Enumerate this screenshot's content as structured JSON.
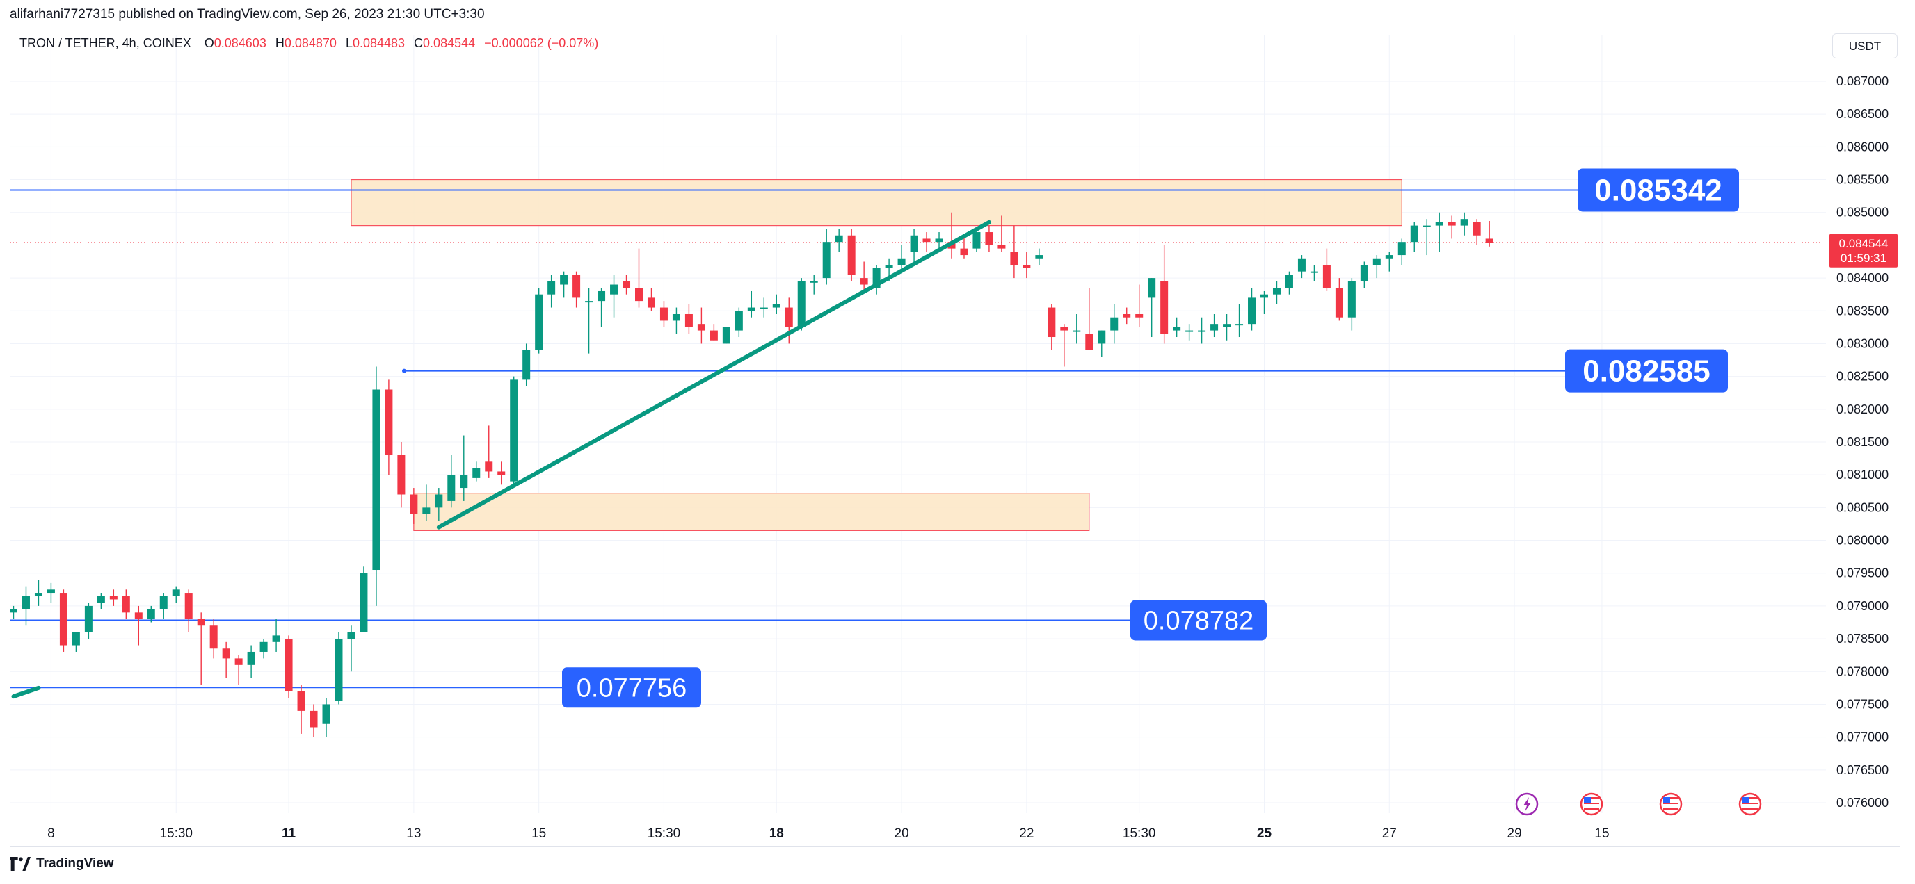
{
  "publisher_line": "alifarhani7727315 published on TradingView.com, Sep 26, 2023 21:30 UTC+3:30",
  "footer_brand": "TradingView",
  "currency_button": "USDT",
  "legend": {
    "symbol": "TRON / TETHER, 4h, COINEX",
    "o_label": "O",
    "o_value": "0.084603",
    "h_label": "H",
    "h_value": "0.084870",
    "l_label": "L",
    "l_value": "0.084483",
    "c_label": "C",
    "c_value": "0.084544",
    "change": "−0.000062 (−0.07%)"
  },
  "colors": {
    "up": "#089981",
    "down": "#f23645",
    "level_line": "#2962ff",
    "zone_fill": "#fde8c8",
    "zone_border": "#f7525f",
    "trendline": "#089981",
    "price_tag": "#f23645",
    "grid": "#f0f3fa",
    "axis_text": "#131722"
  },
  "chart_data": {
    "type": "candlestick",
    "ylim": [
      0.0757,
      0.0874
    ],
    "x_axis_labels": [
      {
        "text": "8",
        "i": 3,
        "bold": false
      },
      {
        "text": "15:30",
        "i": 13,
        "bold": false
      },
      {
        "text": "11",
        "i": 22,
        "bold": true
      },
      {
        "text": "13",
        "i": 32,
        "bold": false
      },
      {
        "text": "15",
        "i": 42,
        "bold": false
      },
      {
        "text": "15:30",
        "i": 52,
        "bold": false
      },
      {
        "text": "18",
        "i": 61,
        "bold": true
      },
      {
        "text": "20",
        "i": 71,
        "bold": false
      },
      {
        "text": "22",
        "i": 81,
        "bold": false
      },
      {
        "text": "15:30",
        "i": 90,
        "bold": false
      },
      {
        "text": "25",
        "i": 100,
        "bold": true
      },
      {
        "text": "27",
        "i": 110,
        "bold": false
      },
      {
        "text": "29",
        "i": 120,
        "bold": false
      },
      {
        "text": "15",
        "i": 127,
        "bold": false
      }
    ],
    "y_ticks": [
      "0.087000",
      "0.086500",
      "0.086000",
      "0.085500",
      "0.085000",
      "0.084000",
      "0.083500",
      "0.083000",
      "0.082500",
      "0.082000",
      "0.081500",
      "0.081000",
      "0.080500",
      "0.080000",
      "0.079500",
      "0.079000",
      "0.078500",
      "0.078000",
      "0.077500",
      "0.077000",
      "0.076500",
      "0.076000"
    ],
    "candles": [
      [
        0.0789,
        0.079,
        0.0788,
        0.07895
      ],
      [
        0.07895,
        0.0793,
        0.0787,
        0.07915
      ],
      [
        0.07915,
        0.0794,
        0.079,
        0.0792
      ],
      [
        0.0792,
        0.07935,
        0.07905,
        0.07925
      ],
      [
        0.0792,
        0.07925,
        0.0783,
        0.0784
      ],
      [
        0.0784,
        0.0786,
        0.0783,
        0.0786
      ],
      [
        0.0786,
        0.07905,
        0.0785,
        0.079
      ],
      [
        0.07905,
        0.0792,
        0.07895,
        0.07915
      ],
      [
        0.07915,
        0.07925,
        0.079,
        0.0791
      ],
      [
        0.07915,
        0.07925,
        0.0788,
        0.0789
      ],
      [
        0.0789,
        0.079,
        0.0784,
        0.0788
      ],
      [
        0.0788,
        0.079,
        0.07875,
        0.07895
      ],
      [
        0.07895,
        0.0792,
        0.0788,
        0.07915
      ],
      [
        0.07915,
        0.0793,
        0.07905,
        0.07925
      ],
      [
        0.0792,
        0.07925,
        0.0786,
        0.0788
      ],
      [
        0.0788,
        0.0789,
        0.0778,
        0.0787
      ],
      [
        0.0787,
        0.0788,
        0.0782,
        0.07835
      ],
      [
        0.07835,
        0.07845,
        0.0779,
        0.0782
      ],
      [
        0.0782,
        0.07825,
        0.0778,
        0.0781
      ],
      [
        0.0781,
        0.0784,
        0.0779,
        0.0783
      ],
      [
        0.0783,
        0.0785,
        0.0782,
        0.07845
      ],
      [
        0.07845,
        0.0788,
        0.0783,
        0.07855
      ],
      [
        0.0785,
        0.07855,
        0.0776,
        0.0777
      ],
      [
        0.0777,
        0.0778,
        0.07705,
        0.0774
      ],
      [
        0.0774,
        0.0775,
        0.077,
        0.07715
      ],
      [
        0.0772,
        0.0776,
        0.077,
        0.0775
      ],
      [
        0.07755,
        0.0786,
        0.0775,
        0.0785
      ],
      [
        0.0785,
        0.0787,
        0.078,
        0.0786
      ],
      [
        0.0786,
        0.0796,
        0.0786,
        0.0795
      ],
      [
        0.07955,
        0.08265,
        0.079,
        0.0823
      ],
      [
        0.0823,
        0.08245,
        0.081,
        0.0813
      ],
      [
        0.0813,
        0.0815,
        0.0805,
        0.0807
      ],
      [
        0.0807,
        0.0808,
        0.08025,
        0.0804
      ],
      [
        0.0804,
        0.08085,
        0.0803,
        0.0805
      ],
      [
        0.0805,
        0.0808,
        0.0803,
        0.0807
      ],
      [
        0.0806,
        0.0813,
        0.0805,
        0.081
      ],
      [
        0.0808,
        0.0816,
        0.0806,
        0.081
      ],
      [
        0.08095,
        0.0812,
        0.0809,
        0.0811
      ],
      [
        0.0812,
        0.08175,
        0.08095,
        0.08105
      ],
      [
        0.08105,
        0.0812,
        0.08085,
        0.081
      ],
      [
        0.0809,
        0.0825,
        0.08085,
        0.08245
      ],
      [
        0.08245,
        0.083,
        0.08235,
        0.0829
      ],
      [
        0.0829,
        0.08385,
        0.08285,
        0.08375
      ],
      [
        0.08375,
        0.08405,
        0.08355,
        0.08395
      ],
      [
        0.0839,
        0.0841,
        0.0837,
        0.08405
      ],
      [
        0.08405,
        0.0841,
        0.08355,
        0.0837
      ],
      [
        0.08365,
        0.08385,
        0.08285,
        0.08365
      ],
      [
        0.08365,
        0.08385,
        0.08325,
        0.0838
      ],
      [
        0.08375,
        0.08405,
        0.0834,
        0.0839
      ],
      [
        0.08395,
        0.08405,
        0.08375,
        0.08385
      ],
      [
        0.08385,
        0.08445,
        0.08355,
        0.08365
      ],
      [
        0.0837,
        0.08385,
        0.0835,
        0.08355
      ],
      [
        0.08355,
        0.08365,
        0.08325,
        0.08335
      ],
      [
        0.08335,
        0.08355,
        0.08315,
        0.08345
      ],
      [
        0.08345,
        0.0836,
        0.08315,
        0.08325
      ],
      [
        0.0833,
        0.08355,
        0.083,
        0.0832
      ],
      [
        0.0832,
        0.0833,
        0.08305,
        0.08305
      ],
      [
        0.083,
        0.08325,
        0.083,
        0.08325
      ],
      [
        0.0832,
        0.08355,
        0.0831,
        0.0835
      ],
      [
        0.0835,
        0.0838,
        0.0834,
        0.08355
      ],
      [
        0.08355,
        0.0837,
        0.0834,
        0.08355
      ],
      [
        0.08355,
        0.08375,
        0.08345,
        0.0836
      ],
      [
        0.08355,
        0.0837,
        0.083,
        0.08325
      ],
      [
        0.08325,
        0.084,
        0.0832,
        0.08395
      ],
      [
        0.08395,
        0.08405,
        0.08375,
        0.08395
      ],
      [
        0.084,
        0.08475,
        0.0839,
        0.08455
      ],
      [
        0.08455,
        0.08475,
        0.0844,
        0.08465
      ],
      [
        0.08465,
        0.08475,
        0.08395,
        0.08405
      ],
      [
        0.084,
        0.08425,
        0.0838,
        0.0839
      ],
      [
        0.08385,
        0.0842,
        0.08375,
        0.08415
      ],
      [
        0.08415,
        0.0843,
        0.08395,
        0.0842
      ],
      [
        0.0842,
        0.0845,
        0.0841,
        0.0843
      ],
      [
        0.0844,
        0.08475,
        0.0842,
        0.08465
      ],
      [
        0.0846,
        0.0847,
        0.0844,
        0.08455
      ],
      [
        0.08455,
        0.0847,
        0.0844,
        0.0846
      ],
      [
        0.08455,
        0.085,
        0.0843,
        0.08445
      ],
      [
        0.08445,
        0.08465,
        0.0843,
        0.08435
      ],
      [
        0.08445,
        0.08475,
        0.0844,
        0.0847
      ],
      [
        0.0847,
        0.0848,
        0.0844,
        0.0845
      ],
      [
        0.0845,
        0.08495,
        0.0844,
        0.08445
      ],
      [
        0.0844,
        0.0848,
        0.084,
        0.0842
      ],
      [
        0.0842,
        0.0844,
        0.084,
        0.08415
      ],
      [
        0.0843,
        0.08445,
        0.0842,
        0.08435
      ],
      [
        0.08355,
        0.0836,
        0.0829,
        0.0831
      ],
      [
        0.08325,
        0.0833,
        0.08265,
        0.0832
      ],
      [
        0.0832,
        0.08345,
        0.083,
        0.0832
      ],
      [
        0.08315,
        0.08385,
        0.08295,
        0.0829
      ],
      [
        0.083,
        0.0832,
        0.0828,
        0.0832
      ],
      [
        0.0832,
        0.0836,
        0.083,
        0.0834
      ],
      [
        0.08345,
        0.08355,
        0.0833,
        0.0834
      ],
      [
        0.08345,
        0.0839,
        0.08325,
        0.0834
      ],
      [
        0.0837,
        0.084,
        0.0831,
        0.084
      ],
      [
        0.08395,
        0.0845,
        0.083,
        0.08315
      ],
      [
        0.0832,
        0.0834,
        0.0831,
        0.08325
      ],
      [
        0.0832,
        0.0833,
        0.08305,
        0.0832
      ],
      [
        0.0832,
        0.0834,
        0.083,
        0.0832
      ],
      [
        0.0832,
        0.08345,
        0.0831,
        0.0833
      ],
      [
        0.08325,
        0.08345,
        0.08305,
        0.0833
      ],
      [
        0.0833,
        0.0836,
        0.0831,
        0.0833
      ],
      [
        0.0833,
        0.08385,
        0.0832,
        0.0837
      ],
      [
        0.0837,
        0.0838,
        0.08345,
        0.08375
      ],
      [
        0.08375,
        0.08395,
        0.0836,
        0.08385
      ],
      [
        0.08385,
        0.0841,
        0.08375,
        0.08405
      ],
      [
        0.0841,
        0.08435,
        0.084,
        0.0843
      ],
      [
        0.0841,
        0.0842,
        0.08395,
        0.0841
      ],
      [
        0.0842,
        0.08445,
        0.0838,
        0.08385
      ],
      [
        0.08385,
        0.084,
        0.08335,
        0.0834
      ],
      [
        0.0834,
        0.084,
        0.0832,
        0.08395
      ],
      [
        0.08395,
        0.08425,
        0.08385,
        0.0842
      ],
      [
        0.0842,
        0.08435,
        0.084,
        0.0843
      ],
      [
        0.0843,
        0.0844,
        0.0841,
        0.08435
      ],
      [
        0.08435,
        0.0846,
        0.0842,
        0.08455
      ],
      [
        0.08455,
        0.08485,
        0.0844,
        0.0848
      ],
      [
        0.0848,
        0.0849,
        0.08435,
        0.0848
      ],
      [
        0.0848,
        0.085,
        0.0844,
        0.08485
      ],
      [
        0.08485,
        0.08495,
        0.0846,
        0.0848
      ],
      [
        0.0848,
        0.085,
        0.08465,
        0.0849
      ],
      [
        0.08485,
        0.0849,
        0.0845,
        0.08465
      ],
      [
        0.0846,
        0.08487,
        0.08448,
        0.08454
      ]
    ],
    "horizontal_levels": [
      {
        "price": 0.085342,
        "label": "0.085342",
        "label_bold": true
      },
      {
        "price": 0.082585,
        "label": "0.082585",
        "label_bold": true
      },
      {
        "price": 0.078782,
        "label": "0.078782",
        "label_bold": false
      },
      {
        "price": 0.077756,
        "label": "0.077756",
        "label_bold": false
      }
    ],
    "zones": [
      {
        "from_i": 27,
        "to_i": 111,
        "top": 0.0855,
        "bottom": 0.0848
      },
      {
        "from_i": 32,
        "to_i": 86,
        "top": 0.08072,
        "bottom": 0.08015
      }
    ],
    "trendlines": [
      {
        "from": [
          34,
          0.0802
        ],
        "to": [
          78,
          0.08485
        ]
      },
      {
        "from": [
          0,
          0.07762
        ],
        "to": [
          2,
          0.07775
        ]
      }
    ],
    "last_price": {
      "value": "0.084544",
      "price": 0.084544,
      "countdown": "01:59:31"
    }
  }
}
